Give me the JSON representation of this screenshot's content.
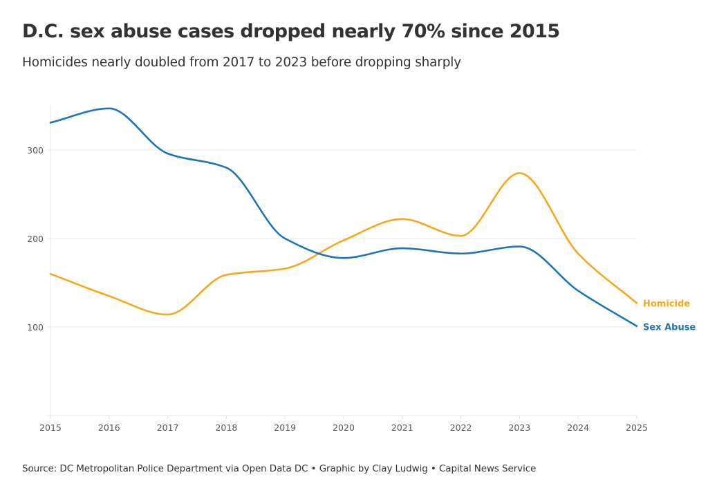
{
  "header": {
    "title": "D.C. sex abuse cases dropped nearly 70% since 2015",
    "subtitle": "Homicides nearly doubled from 2017 to 2023 before dropping sharply"
  },
  "footer": {
    "source": "Source: DC Metropolitan Police Department via Open Data DC • Graphic by Clay Ludwig • Capital News Service"
  },
  "chart_data": {
    "type": "line",
    "title": "D.C. sex abuse cases dropped nearly 70% since 2015",
    "subtitle": "Homicides nearly doubled from 2017 to 2023 before dropping sharply",
    "xlabel": "",
    "ylabel": "",
    "x": [
      2015,
      2016,
      2017,
      2018,
      2019,
      2020,
      2021,
      2022,
      2023,
      2024,
      2025
    ],
    "x_tick_labels": [
      "2015",
      "2016",
      "2017",
      "2018",
      "2019",
      "2020",
      "2021",
      "2022",
      "2023",
      "2024",
      "2025"
    ],
    "y_ticks": [
      100,
      200,
      300
    ],
    "y_tick_labels": [
      "100",
      "200",
      "300"
    ],
    "ylim": [
      0,
      350
    ],
    "xlim": [
      2015,
      2025
    ],
    "grid": "horizontal",
    "curve": "smooth",
    "legend": "direct labels at line ends (right)",
    "series": [
      {
        "name": "Homicide",
        "color": "#F5A81C",
        "values": [
          160,
          135,
          114,
          159,
          166,
          198,
          222,
          203,
          274,
          183,
          127
        ]
      },
      {
        "name": "Sex Abuse",
        "color": "#1F74B4",
        "values": [
          331,
          347,
          296,
          280,
          200,
          178,
          189,
          183,
          191,
          141,
          101
        ]
      }
    ]
  }
}
